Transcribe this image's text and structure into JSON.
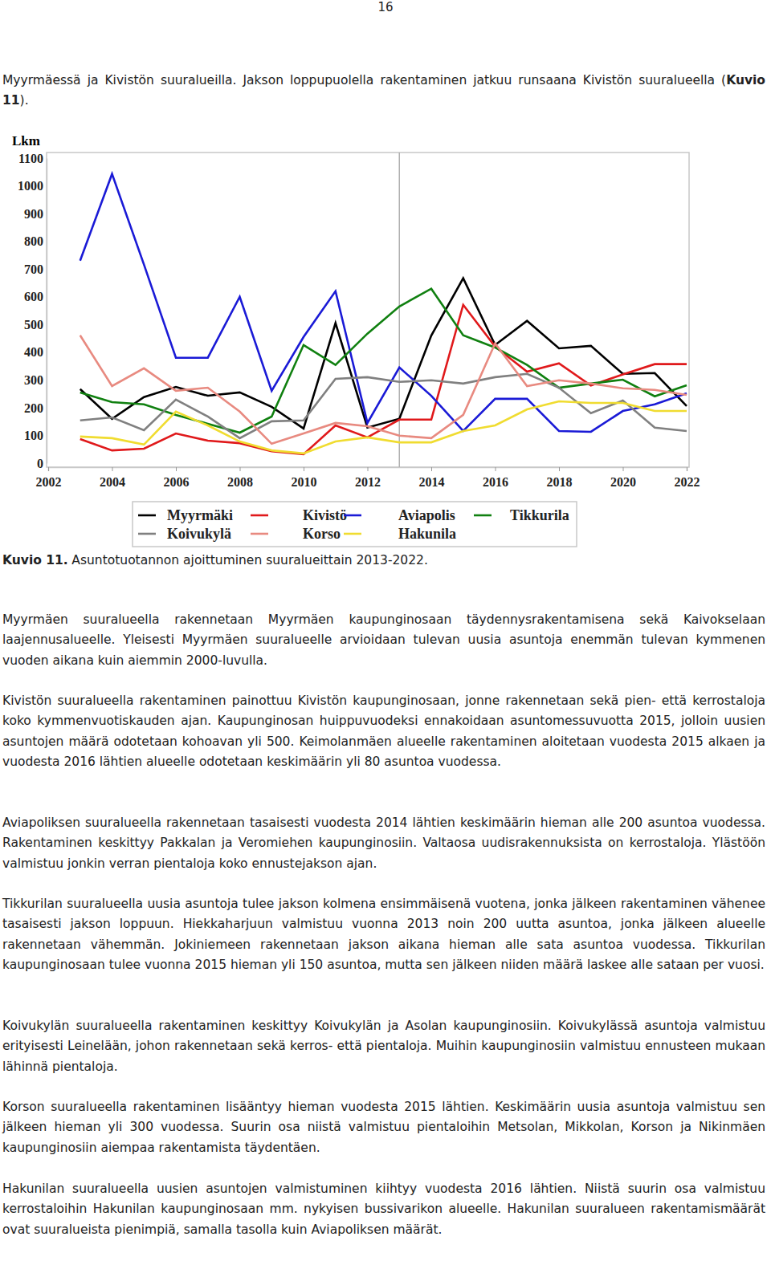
{
  "page_number": "16",
  "intro": {
    "runs": [
      {
        "text": "Myyrmäessä ja Kivistön suuralueilla. Jakson loppupuolella rakentaminen jatkuu runsaana Kivistön suuralueella (",
        "bold": false
      },
      {
        "text": "Kuvio 11",
        "bold": true
      },
      {
        "text": ").",
        "bold": false
      }
    ]
  },
  "chart_data": {
    "type": "line",
    "y_label": "Lkm",
    "x": [
      2003,
      2004,
      2005,
      2006,
      2007,
      2008,
      2009,
      2010,
      2011,
      2012,
      2013,
      2014,
      2015,
      2016,
      2017,
      2018,
      2019,
      2020,
      2021,
      2022
    ],
    "xlim": [
      2002,
      2022
    ],
    "xticks": [
      2002,
      2004,
      2006,
      2008,
      2010,
      2012,
      2014,
      2016,
      2018,
      2020,
      2022
    ],
    "ylim": [
      0,
      1100
    ],
    "yticks": [
      0,
      100,
      200,
      300,
      400,
      500,
      600,
      700,
      800,
      900,
      1000,
      1100
    ],
    "vertical_line_x": 2013,
    "series": [
      {
        "name": "Myyrmäki",
        "color": "#000000",
        "values": [
          267,
          160,
          238,
          275,
          243,
          255,
          203,
          125,
          505,
          128,
          160,
          460,
          667,
          426,
          513,
          414,
          423,
          322,
          325,
          206
        ]
      },
      {
        "name": "Kivistö",
        "color": "#e0191b",
        "values": [
          87,
          46,
          52,
          107,
          81,
          72,
          43,
          32,
          136,
          93,
          157,
          157,
          571,
          420,
          330,
          360,
          280,
          320,
          357,
          357
        ]
      },
      {
        "name": "Aviapolis",
        "color": "#1a1ad6",
        "values": [
          730,
          1043,
          716,
          380,
          380,
          600,
          261,
          455,
          620,
          145,
          345,
          243,
          116,
          232,
          232,
          116,
          113,
          188,
          212,
          252
        ]
      },
      {
        "name": "Tikkurila",
        "color": "#108010",
        "values": [
          255,
          220,
          212,
          174,
          142,
          110,
          168,
          426,
          354,
          467,
          565,
          629,
          461,
          417,
          354,
          272,
          287,
          301,
          241,
          281
        ]
      },
      {
        "name": "Koivukylä",
        "color": "#808080",
        "values": [
          154,
          165,
          119,
          229,
          168,
          90,
          151,
          154,
          304,
          310,
          293,
          299,
          287,
          310,
          322,
          272,
          180,
          226,
          128,
          116
        ]
      },
      {
        "name": "Korso",
        "color": "#e88a80",
        "values": [
          461,
          278,
          342,
          261,
          272,
          186,
          70,
          107,
          145,
          133,
          99,
          90,
          174,
          432,
          278,
          299,
          287,
          270,
          264,
          246
        ]
      },
      {
        "name": "Hakunila",
        "color": "#f0dc30",
        "values": [
          96,
          90,
          67,
          186,
          136,
          78,
          46,
          35,
          78,
          93,
          75,
          75,
          116,
          136,
          194,
          223,
          217,
          217,
          188,
          188
        ]
      }
    ],
    "legend": "bottom"
  },
  "caption": {
    "label": "Kuvio 11.",
    "text": "Asuntotuotannon ajoittuminen suuralueittain 2013-2022."
  },
  "paragraphs": [
    "Myyrmäen suuralueella rakennetaan Myyrmäen kaupunginosaan täydennysrakentamisena sekä Kaivokselaan laajennusalueelle. Yleisesti Myyrmäen suuralueelle arvioidaan tulevan uusia asuntoja enemmän tulevan kymmenen vuoden aikana kuin aiemmin 2000-luvulla.",
    "Kivistön suuralueella rakentaminen painottuu Kivistön kaupunginosaan, jonne rakennetaan sekä pien- että kerrostaloja koko kymmenvuotiskauden ajan. Kaupunginosan huippuvuodeksi ennakoidaan asuntomessuvuotta 2015, jolloin uusien asuntojen määrä odotetaan kohoavan yli 500. Keimolanmäen alueelle rakentaminen aloitetaan vuodesta 2015 alkaen ja vuodesta 2016 lähtien alueelle odotetaan keskimäärin yli 80 asuntoa vuodessa.",
    "Aviapoliksen suuralueella rakennetaan tasaisesti vuodesta 2014 lähtien keskimäärin hieman alle 200 asuntoa vuodessa. Rakentaminen keskittyy Pakkalan ja Veromiehen kaupunginosiin. Valtaosa uudisrakennuksista on kerrostaloja. Ylästöön valmistuu jonkin verran pientaloja koko ennustejakson ajan.",
    "Tikkurilan suuralueella uusia asuntoja tulee jakson kolmena ensimmäisenä vuotena, jonka jälkeen rakentaminen vähenee tasaisesti jakson loppuun. Hiekkaharjuun valmistuu vuonna 2013 noin 200 uutta asuntoa, jonka jälkeen alueelle rakennetaan vähemmän. Jokiniemeen rakennetaan jakson aikana hieman alle sata asuntoa vuodessa. Tikkurilan kaupunginosaan tulee vuonna 2015 hieman yli 150 asuntoa, mutta sen jälkeen niiden määrä laskee alle sataan per vuosi.",
    "Koivukylän suuralueella rakentaminen keskittyy Koivukylän ja Asolan kaupunginosiin. Koivukylässä asuntoja valmistuu erityisesti Leinelään, johon rakennetaan sekä kerros- että pientaloja. Muihin kaupunginosiin valmistuu ennusteen mukaan lähinnä pientaloja.",
    "Korson suuralueella rakentaminen lisääntyy hieman vuodesta 2015 lähtien. Keskimäärin uusia asuntoja valmistuu sen jälkeen hieman yli 300 vuodessa. Suurin osa niistä valmistuu pientaloihin Metsolan, Mikkolan, Korson ja Nikinmäen kaupunginosiin aiempaa rakentamista täydentäen.",
    "Hakunilan suuralueella uusien asuntojen valmistuminen kiihtyy vuodesta 2016 lähtien. Niistä suurin osa valmistuu kerrostaloihin Hakunilan kaupunginosaan mm. nykyisen bussivarikon alueelle. Hakunilan suuralueen rakentamismäärät ovat suuralueista pienimpiä, samalla tasolla kuin Aviapoliksen määrät."
  ]
}
